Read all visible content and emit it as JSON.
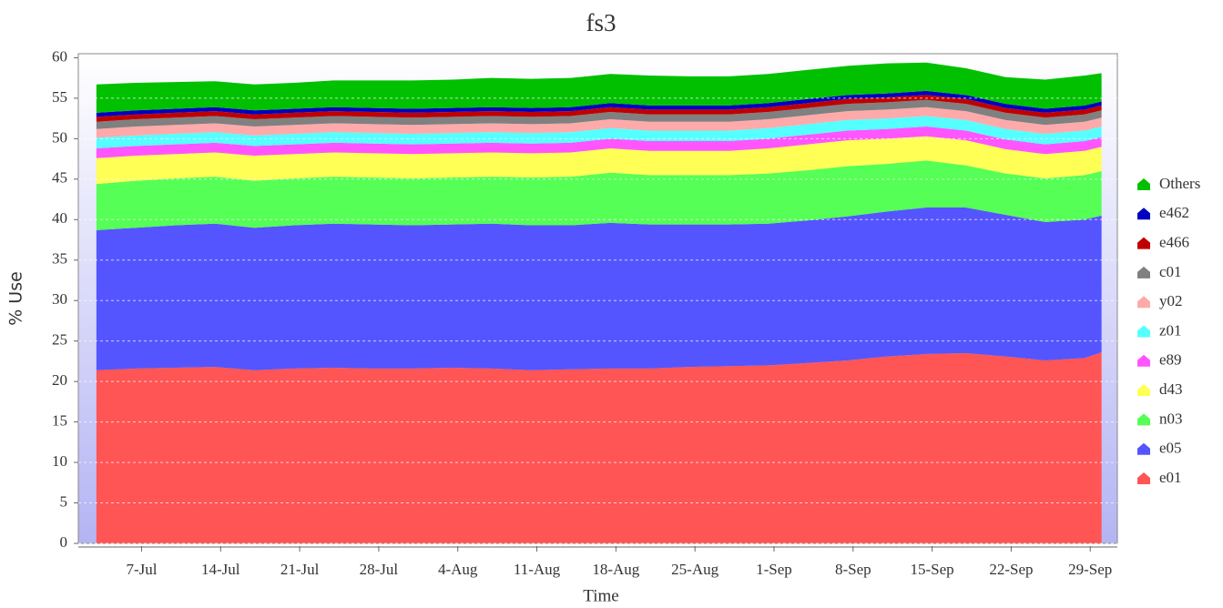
{
  "chart_data": {
    "type": "stacked_area",
    "title": "fs3",
    "x_label": "Time",
    "y_label": "% Use",
    "x": [
      2,
      5.5,
      9,
      12.5,
      16,
      19.5,
      23,
      26.5,
      30,
      33.5,
      37,
      40.5,
      44,
      47.5,
      51,
      54.5,
      58,
      61.5,
      65,
      68.5,
      72,
      75.5,
      79,
      82.5,
      86,
      89.5,
      91
    ],
    "xlim": [
      0.4,
      92.4
    ],
    "xticks": [
      {
        "value": 6,
        "label": "7-Jul"
      },
      {
        "value": 13,
        "label": "14-Jul"
      },
      {
        "value": 20,
        "label": "21-Jul"
      },
      {
        "value": 27,
        "label": "28-Jul"
      },
      {
        "value": 34,
        "label": "4-Aug"
      },
      {
        "value": 41,
        "label": "11-Aug"
      },
      {
        "value": 48,
        "label": "18-Aug"
      },
      {
        "value": 55,
        "label": "25-Aug"
      },
      {
        "value": 62,
        "label": "1-Sep"
      },
      {
        "value": 69,
        "label": "8-Sep"
      },
      {
        "value": 76,
        "label": "15-Sep"
      },
      {
        "value": 83,
        "label": "22-Sep"
      },
      {
        "value": 90,
        "label": "29-Sep"
      }
    ],
    "ylim": [
      0,
      60.5
    ],
    "yticks": [
      0,
      5,
      10,
      15,
      20,
      25,
      30,
      35,
      40,
      45,
      50,
      55,
      60
    ],
    "grid": true,
    "legend": "right",
    "series": [
      {
        "name": "e01",
        "color": "#ff5555",
        "values": [
          21.4,
          21.6,
          21.7,
          21.8,
          21.4,
          21.6,
          21.7,
          21.6,
          21.6,
          21.7,
          21.6,
          21.4,
          21.5,
          21.6,
          21.6,
          21.8,
          21.9,
          22.0,
          22.3,
          22.6,
          23.1,
          23.4,
          23.5,
          23.1,
          22.6,
          22.9,
          23.6
        ]
      },
      {
        "name": "e05",
        "color": "#5555ff",
        "values": [
          17.3,
          17.4,
          17.6,
          17.7,
          17.6,
          17.7,
          17.8,
          17.8,
          17.7,
          17.7,
          17.9,
          17.9,
          17.8,
          18.0,
          17.8,
          17.6,
          17.5,
          17.5,
          17.6,
          17.8,
          17.9,
          18.1,
          18.0,
          17.5,
          17.1,
          17.1,
          16.9
        ]
      },
      {
        "name": "n03",
        "color": "#55ff55",
        "values": [
          5.7,
          5.8,
          5.8,
          5.8,
          5.8,
          5.8,
          5.8,
          5.8,
          5.8,
          5.8,
          5.8,
          5.9,
          6.0,
          6.2,
          6.1,
          6.1,
          6.1,
          6.2,
          6.2,
          6.2,
          5.9,
          5.8,
          5.2,
          5.1,
          5.4,
          5.5,
          5.5
        ]
      },
      {
        "name": "d43",
        "color": "#ffff55",
        "values": [
          3.2,
          3.1,
          3.0,
          3.0,
          3.1,
          3.0,
          3.0,
          3.0,
          3.0,
          3.0,
          3.0,
          3.0,
          3.0,
          3.0,
          3.0,
          3.0,
          3.0,
          3.1,
          3.2,
          3.2,
          3.1,
          3.0,
          3.1,
          3.0,
          3.0,
          3.0,
          3.0
        ]
      },
      {
        "name": "e89",
        "color": "#ff55ff",
        "values": [
          1.2,
          1.2,
          1.2,
          1.2,
          1.2,
          1.2,
          1.2,
          1.2,
          1.2,
          1.2,
          1.2,
          1.2,
          1.2,
          1.2,
          1.2,
          1.2,
          1.2,
          1.2,
          1.2,
          1.2,
          1.2,
          1.2,
          1.2,
          1.2,
          1.2,
          1.2,
          1.2
        ]
      },
      {
        "name": "z01",
        "color": "#55ffff",
        "values": [
          1.3,
          1.3,
          1.3,
          1.3,
          1.3,
          1.3,
          1.3,
          1.3,
          1.3,
          1.3,
          1.3,
          1.3,
          1.3,
          1.3,
          1.3,
          1.3,
          1.3,
          1.3,
          1.3,
          1.3,
          1.3,
          1.3,
          1.3,
          1.3,
          1.3,
          1.3,
          1.3
        ]
      },
      {
        "name": "y02",
        "color": "#ffaaaa",
        "values": [
          1.1,
          1.1,
          1.1,
          1.1,
          1.1,
          1.1,
          1.1,
          1.1,
          1.1,
          1.1,
          1.1,
          1.1,
          1.1,
          1.1,
          1.1,
          1.1,
          1.1,
          1.1,
          1.1,
          1.1,
          1.1,
          1.1,
          1.1,
          1.1,
          1.1,
          1.1,
          1.1
        ]
      },
      {
        "name": "c01",
        "color": "#808080",
        "values": [
          0.9,
          0.9,
          0.9,
          0.9,
          0.9,
          0.9,
          0.9,
          0.9,
          0.9,
          0.9,
          0.9,
          0.9,
          0.9,
          0.9,
          0.9,
          0.9,
          0.9,
          0.9,
          0.9,
          0.9,
          0.9,
          0.9,
          0.9,
          0.9,
          0.9,
          0.9,
          0.9
        ]
      },
      {
        "name": "e466",
        "color": "#c00000",
        "values": [
          0.6,
          0.6,
          0.6,
          0.6,
          0.6,
          0.6,
          0.6,
          0.6,
          0.6,
          0.6,
          0.6,
          0.6,
          0.6,
          0.6,
          0.6,
          0.6,
          0.6,
          0.6,
          0.6,
          0.6,
          0.6,
          0.6,
          0.6,
          0.6,
          0.6,
          0.6,
          0.6
        ]
      },
      {
        "name": "e462",
        "color": "#0000c0",
        "values": [
          0.5,
          0.5,
          0.5,
          0.5,
          0.5,
          0.5,
          0.5,
          0.5,
          0.5,
          0.5,
          0.5,
          0.5,
          0.5,
          0.5,
          0.5,
          0.5,
          0.5,
          0.5,
          0.5,
          0.5,
          0.5,
          0.5,
          0.5,
          0.5,
          0.5,
          0.5,
          0.5
        ]
      },
      {
        "name": "Others",
        "color": "#00c000",
        "values": [
          3.5,
          3.4,
          3.3,
          3.2,
          3.2,
          3.2,
          3.3,
          3.4,
          3.5,
          3.5,
          3.6,
          3.6,
          3.6,
          3.6,
          3.7,
          3.6,
          3.6,
          3.6,
          3.6,
          3.6,
          3.7,
          3.5,
          3.3,
          3.3,
          3.6,
          3.7,
          3.5
        ]
      }
    ]
  }
}
